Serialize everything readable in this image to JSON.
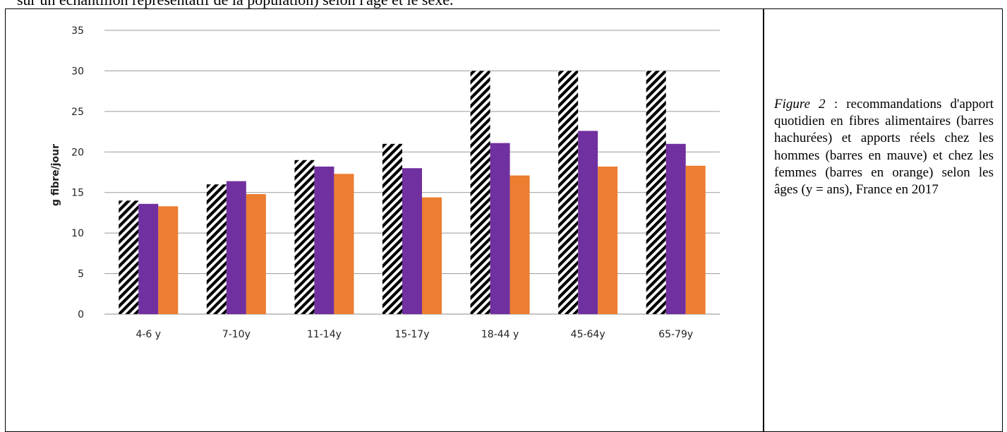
{
  "document": {
    "top_text": "sur un échantillon représentatif de la population) selon l'âge et le sexe.",
    "caption": {
      "figure_label": "Figure 2",
      "text": " : recommandations d'apport quotidien en fibres alimentaires (barres hachurées) et apports réels chez les hommes (barres en mauve) et chez les femmes (barres en orange) selon les âges (y = ans), France en 2017"
    }
  },
  "chart_data": {
    "type": "bar",
    "title": "",
    "xlabel": "",
    "ylabel": "g fibre/jour",
    "ylim": [
      0,
      35
    ],
    "yticks": [
      0,
      5,
      10,
      15,
      20,
      25,
      30,
      35
    ],
    "grid": true,
    "categories": [
      "4-6 y",
      "7-10y",
      "11-14y",
      "15-17y",
      "18-44 y",
      "45-64y",
      "65-79y"
    ],
    "series": [
      {
        "values": [
          14,
          16,
          19,
          21,
          30,
          30,
          30
        ],
        "color": "#000000",
        "pattern": "hatched"
      },
      {
        "values": [
          13.6,
          16.4,
          18.2,
          18.0,
          21.1,
          22.6,
          21.0
        ],
        "color": "#7030a0"
      },
      {
        "values": [
          13.3,
          14.8,
          17.3,
          14.4,
          17.1,
          18.2,
          18.3
        ],
        "color": "#ed7d31"
      }
    ]
  }
}
